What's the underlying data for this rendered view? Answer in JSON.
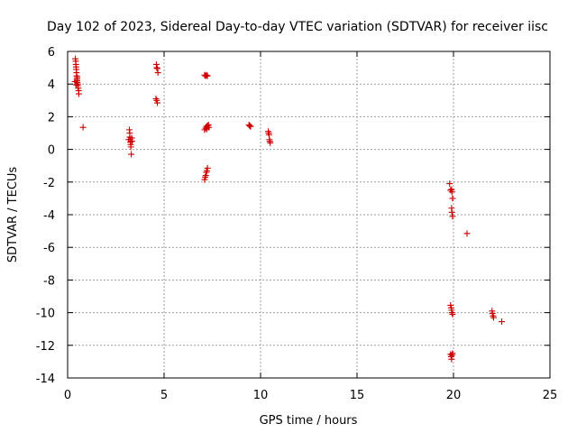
{
  "chart_data": {
    "type": "scatter",
    "title": "Day 102 of 2023, Sidereal Day-to-day VTEC variation (SDTVAR) for receiver iisc",
    "xlabel": "GPS time / hours",
    "ylabel": "SDTVAR / TECUs",
    "xlim": [
      0,
      25
    ],
    "ylim": [
      -14,
      6
    ],
    "xticks": [
      0,
      5,
      10,
      15,
      20,
      25
    ],
    "yticks": [
      -14,
      -12,
      -10,
      -8,
      -6,
      -4,
      -2,
      0,
      2,
      4,
      6
    ],
    "grid": true,
    "marker": "+",
    "color": "#cc0000",
    "series": [
      {
        "name": "SDTVAR",
        "points": [
          [
            0.4,
            5.55
          ],
          [
            0.42,
            5.4
          ],
          [
            0.43,
            5.2
          ],
          [
            0.44,
            5.05
          ],
          [
            0.45,
            4.9
          ],
          [
            0.46,
            4.7
          ],
          [
            0.47,
            4.5
          ],
          [
            0.48,
            4.3
          ],
          [
            0.49,
            4.2
          ],
          [
            0.5,
            4.1
          ],
          [
            0.52,
            4.0
          ],
          [
            0.53,
            3.9
          ],
          [
            0.55,
            3.75
          ],
          [
            0.57,
            3.6
          ],
          [
            0.58,
            3.4
          ],
          [
            0.38,
            4.15
          ],
          [
            0.44,
            3.95
          ],
          [
            0.5,
            4.4
          ],
          [
            0.8,
            1.35
          ],
          [
            3.2,
            1.2
          ],
          [
            3.22,
            1.0
          ],
          [
            3.22,
            0.75
          ],
          [
            3.24,
            0.6
          ],
          [
            3.25,
            0.45
          ],
          [
            3.27,
            0.3
          ],
          [
            3.28,
            0.15
          ],
          [
            3.3,
            -0.3
          ],
          [
            3.32,
            0.7
          ],
          [
            3.34,
            0.5
          ],
          [
            3.16,
            0.6
          ],
          [
            4.6,
            5.2
          ],
          [
            4.62,
            5.0
          ],
          [
            4.65,
            4.95
          ],
          [
            4.68,
            4.7
          ],
          [
            4.58,
            3.1
          ],
          [
            4.62,
            3.0
          ],
          [
            4.65,
            2.85
          ],
          [
            7.1,
            4.55
          ],
          [
            7.15,
            4.5
          ],
          [
            7.2,
            4.55
          ],
          [
            7.25,
            4.5
          ],
          [
            7.1,
            1.2
          ],
          [
            7.15,
            1.3
          ],
          [
            7.2,
            1.4
          ],
          [
            7.25,
            1.45
          ],
          [
            7.3,
            1.5
          ],
          [
            7.22,
            1.25
          ],
          [
            7.32,
            1.35
          ],
          [
            7.1,
            -1.85
          ],
          [
            7.13,
            -1.7
          ],
          [
            7.16,
            -1.6
          ],
          [
            7.19,
            -1.4
          ],
          [
            7.22,
            -1.3
          ],
          [
            7.25,
            -1.15
          ],
          [
            9.4,
            1.5
          ],
          [
            9.44,
            1.45
          ],
          [
            9.48,
            1.4
          ],
          [
            10.4,
            1.1
          ],
          [
            10.42,
            1.0
          ],
          [
            10.44,
            0.9
          ],
          [
            10.46,
            0.6
          ],
          [
            10.48,
            0.5
          ],
          [
            10.5,
            0.4
          ],
          [
            19.8,
            -2.1
          ],
          [
            19.85,
            -2.5
          ],
          [
            19.9,
            -2.45
          ],
          [
            19.92,
            -2.6
          ],
          [
            19.95,
            -3.0
          ],
          [
            19.9,
            -3.6
          ],
          [
            19.92,
            -3.85
          ],
          [
            19.95,
            -4.1
          ],
          [
            20.7,
            -5.15
          ],
          [
            19.85,
            -9.55
          ],
          [
            19.88,
            -9.7
          ],
          [
            19.9,
            -9.85
          ],
          [
            19.92,
            -10.0
          ],
          [
            19.95,
            -10.1
          ],
          [
            19.85,
            -12.55
          ],
          [
            19.88,
            -12.7
          ],
          [
            19.92,
            -12.6
          ],
          [
            19.95,
            -12.5
          ],
          [
            19.9,
            -12.85
          ],
          [
            22.0,
            -9.9
          ],
          [
            22.02,
            -10.05
          ],
          [
            22.05,
            -10.2
          ],
          [
            22.08,
            -10.3
          ],
          [
            22.5,
            -10.55
          ]
        ]
      }
    ]
  }
}
